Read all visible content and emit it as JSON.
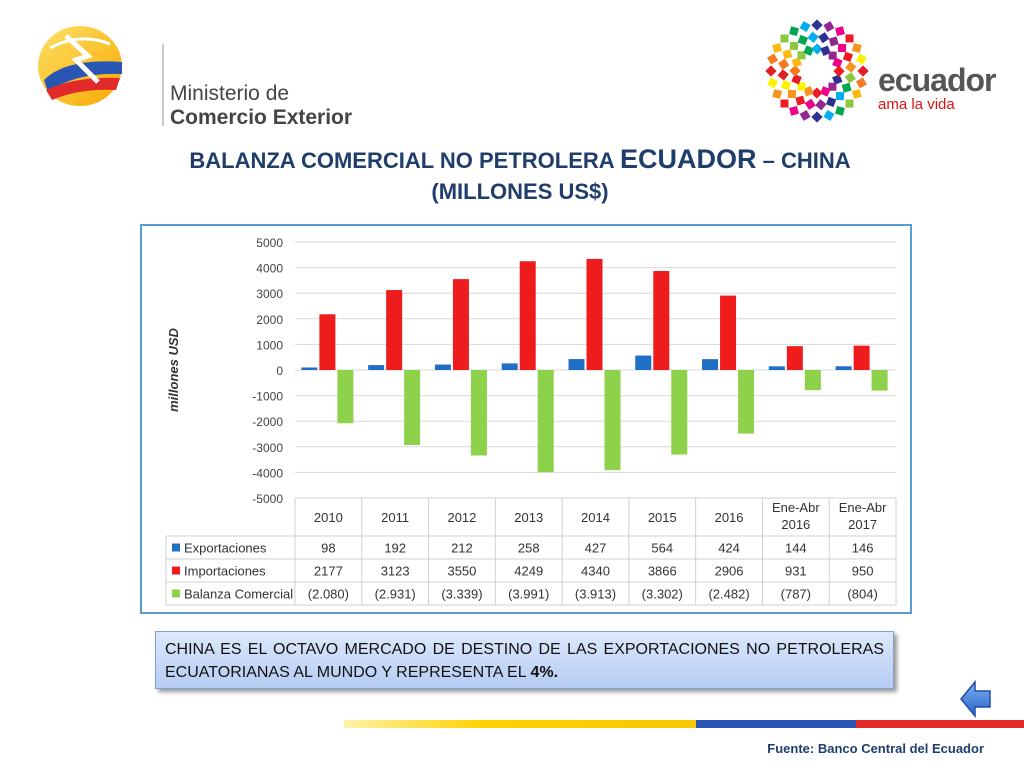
{
  "header": {
    "ministry_line1": "Ministerio de",
    "ministry_line2": "Comercio Exterior",
    "brand_word": "ecuador",
    "brand_tagline": "ama la vida"
  },
  "title": {
    "part1": "BALANZA COMERCIAL NO PETROLERA ",
    "part2": "ECUADOR",
    "part3": " – CHINA",
    "line2": "(MILLONES US$)"
  },
  "chart_data": {
    "type": "bar",
    "ylabel": "millones USD",
    "ylim": [
      -5000,
      5000
    ],
    "yticks": [
      5000,
      4000,
      3000,
      2000,
      1000,
      0,
      -1000,
      -2000,
      -3000,
      -4000,
      -5000
    ],
    "grid": true,
    "categories": [
      [
        "2010"
      ],
      [
        "2011"
      ],
      [
        "2012"
      ],
      [
        "2013"
      ],
      [
        "2014"
      ],
      [
        "2015"
      ],
      [
        "2016"
      ],
      [
        "Ene-Abr",
        "2016"
      ],
      [
        "Ene-Abr",
        "2017"
      ]
    ],
    "series": [
      {
        "name": "Exportaciones",
        "color": "#1f6fc4",
        "values": [
          98,
          192,
          212,
          258,
          427,
          564,
          424,
          144,
          146
        ],
        "labels": [
          "98",
          "192",
          "212",
          "258",
          "427",
          "564",
          "424",
          "144",
          "146"
        ]
      },
      {
        "name": "Importaciones",
        "color": "#ee1c1c",
        "values": [
          2177,
          3123,
          3550,
          4249,
          4340,
          3866,
          2906,
          931,
          950
        ],
        "labels": [
          "2177",
          "3123",
          "3550",
          "4249",
          "4340",
          "3866",
          "2906",
          "931",
          "950"
        ]
      },
      {
        "name": "Balanza Comercial",
        "color": "#8ed14a",
        "values": [
          -2080,
          -2931,
          -3339,
          -3991,
          -3913,
          -3302,
          -2482,
          -787,
          -804
        ],
        "labels": [
          "(2.080)",
          "(2.931)",
          "(3.339)",
          "(3.991)",
          "(3.913)",
          "(3.302)",
          "(2.482)",
          "(787)",
          "(804)"
        ]
      }
    ]
  },
  "note": {
    "text": "CHINA ES EL OCTAVO MERCADO DE DESTINO DE LAS EXPORTACIONES NO PETROLERAS ECUATORIANAS AL MUNDO Y REPRESENTA EL ",
    "highlight": "4%."
  },
  "footer": {
    "source": "Fuente: Banco Central del Ecuador"
  },
  "icons": {
    "back": "back-arrow-icon"
  }
}
